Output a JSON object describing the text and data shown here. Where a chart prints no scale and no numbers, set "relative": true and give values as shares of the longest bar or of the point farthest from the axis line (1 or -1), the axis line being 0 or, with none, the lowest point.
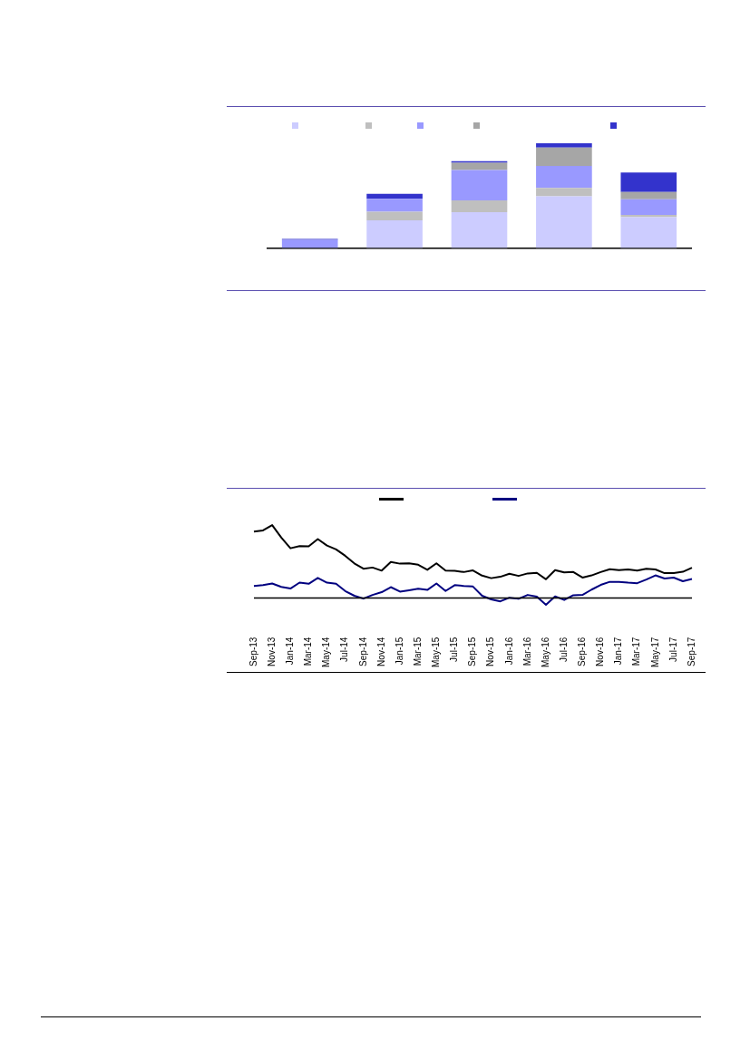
{
  "chart_data": [
    {
      "type": "bar",
      "stacked": true,
      "relative": true,
      "categories": [
        null,
        null,
        null,
        null,
        null
      ],
      "series": [
        {
          "color": "#ccccff",
          "values": [
            0,
            0.264,
            0.342,
            0.495,
            0.295
          ]
        },
        {
          "color": "#bfbfbf",
          "values": [
            null,
            0.083,
            0.114,
            0.078,
            0.021
          ]
        },
        {
          "color": "#9999ff",
          "values": [
            0.078,
            0.124,
            0.288,
            0.21,
            0.15
          ]
        },
        {
          "color": "#a6a6a6",
          "values": [
            0,
            0,
            0.07,
            0.176,
            0.07
          ]
        },
        {
          "color": "#3333cc",
          "values": [
            0.01,
            0.047,
            0.016,
            0.041,
            0.184
          ]
        }
      ]
    },
    {
      "type": "line",
      "relative": true,
      "marker": "none",
      "line_style": "solid",
      "tick_labels": "x",
      "categories": [
        "Sep-13",
        null,
        "Nov-13",
        null,
        "Jan-14",
        null,
        "Mar-14",
        null,
        "May-14",
        null,
        "Jul-14",
        null,
        "Sep-14",
        null,
        "Nov-14",
        null,
        "Jan-15",
        null,
        "Mar-15",
        null,
        "May-15",
        null,
        "Jul-15",
        null,
        "Sep-15",
        null,
        "Nov-15",
        null,
        "Jan-16",
        null,
        "Mar-16",
        null,
        "May-16",
        null,
        "Jul-16",
        null,
        "Sep-16",
        null,
        "Nov-16",
        null,
        "Jan-17",
        null,
        "Mar-17",
        null,
        "May-17",
        null,
        "Jul-17",
        null,
        "Sep-17"
      ],
      "series": [
        {
          "color": "#000000",
          "values": [
            0.912,
            0.927,
            1,
            0.828,
            0.682,
            0.713,
            0.709,
            0.808,
            0.72,
            0.667,
            0.579,
            0.475,
            0.402,
            0.418,
            0.375,
            0.494,
            0.471,
            0.475,
            0.456,
            0.387,
            0.475,
            0.375,
            0.372,
            0.356,
            0.379,
            0.307,
            0.272,
            0.291,
            0.333,
            0.303,
            0.337,
            0.345,
            0.257,
            0.383,
            0.352,
            0.356,
            0.28,
            0.31,
            0.356,
            0.395,
            0.383,
            0.391,
            0.375,
            0.402,
            0.391,
            0.341,
            0.341,
            0.36,
            0.414
          ]
        },
        {
          "color": "#000080",
          "values": [
            0.165,
            0.176,
            0.199,
            0.153,
            0.13,
            0.211,
            0.195,
            0.276,
            0.211,
            0.195,
            0.096,
            0.031,
            -0.008,
            0.042,
            0.08,
            0.149,
            0.088,
            0.107,
            0.126,
            0.111,
            0.199,
            0.096,
            0.176,
            0.165,
            0.157,
            0.031,
            -0.019,
            -0.046,
            0.004,
            -0.011,
            0.042,
            0.019,
            -0.092,
            0.023,
            -0.027,
            0.038,
            0.042,
            0.115,
            0.18,
            0.222,
            0.222,
            0.211,
            0.203,
            0.253,
            0.31,
            0.268,
            0.28,
            0.23,
            0.261
          ]
        }
      ]
    }
  ]
}
